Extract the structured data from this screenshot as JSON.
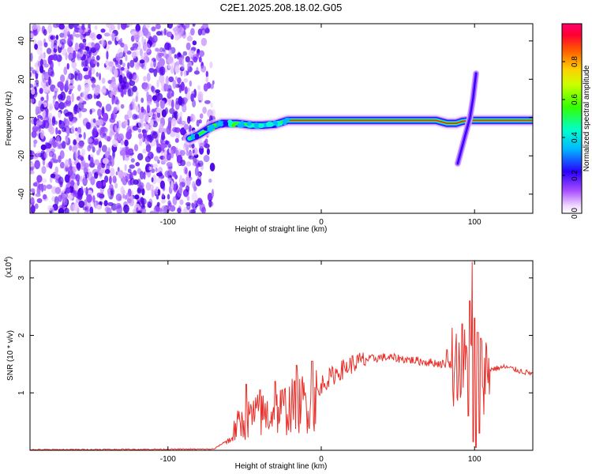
{
  "title": "C2E1.2025.208.18.02.G05",
  "top_chart": {
    "type": "heatmap",
    "xlabel": "Height of straight line (km)",
    "ylabel": "Frequency (Hz)",
    "xlim": [
      -190,
      138
    ],
    "ylim": [
      -50,
      49
    ],
    "x_ticks": [
      {
        "v": -100,
        "label": "-100"
      },
      {
        "v": 0,
        "label": "0"
      },
      {
        "v": 100,
        "label": "100"
      }
    ],
    "y_ticks": [
      {
        "v": 40,
        "label": "40"
      },
      {
        "v": 20,
        "label": "20"
      },
      {
        "v": 0,
        "label": "0"
      },
      {
        "v": -20,
        "label": "-20"
      },
      {
        "v": -40,
        "label": "-40"
      }
    ],
    "colorbar": {
      "label": "Normalized spectral amplitude",
      "range": [
        0,
        1
      ],
      "ticks": [
        {
          "v": 0.0,
          "label": "0.0"
        },
        {
          "v": 0.2,
          "label": "0.2"
        },
        {
          "v": 0.4,
          "label": "0.4"
        },
        {
          "v": 0.6,
          "label": "0.6"
        },
        {
          "v": 0.8,
          "label": "0.8"
        }
      ]
    },
    "ridge": {
      "points": [
        [
          -86,
          -11
        ],
        [
          -80,
          -9
        ],
        [
          -72,
          -5
        ],
        [
          -65,
          -3
        ],
        [
          -55,
          -3
        ],
        [
          -45,
          -4
        ],
        [
          -38,
          -4
        ],
        [
          -30,
          -3.5
        ],
        [
          -22,
          -1.5
        ],
        [
          -10,
          -1.5
        ],
        [
          0,
          -1.5
        ],
        [
          20,
          -1.5
        ],
        [
          50,
          -1.5
        ],
        [
          75,
          -1.5
        ],
        [
          82,
          -3
        ],
        [
          88,
          -3
        ],
        [
          92,
          -2
        ],
        [
          98,
          -1.5
        ],
        [
          110,
          -1.5
        ],
        [
          138,
          -1.5
        ]
      ],
      "branch": [
        [
          89,
          -24
        ],
        [
          93,
          -12
        ],
        [
          97,
          0
        ],
        [
          99,
          10
        ],
        [
          101,
          23
        ]
      ]
    }
  },
  "bottom_chart": {
    "type": "line",
    "xlabel": "Height of straight line (km)",
    "ylabel": "SNR (10 * v/v)",
    "scale_note": "(x10",
    "scale_exp": "4",
    "scale_close": ")",
    "xlim": [
      -190,
      138
    ],
    "ylim": [
      0,
      3.3
    ],
    "x_ticks": [
      {
        "v": -100,
        "label": "-100"
      },
      {
        "v": 0,
        "label": "0"
      },
      {
        "v": 100,
        "label": "100"
      }
    ],
    "y_ticks": [
      {
        "v": 3,
        "label": "3"
      },
      {
        "v": 2,
        "label": "2"
      },
      {
        "v": 1,
        "label": "1"
      }
    ],
    "series": [
      {
        "color": "#e8302a",
        "envelope": [
          [
            -190,
            0.01
          ],
          [
            -70,
            0.02
          ],
          [
            -60,
            0.2
          ],
          [
            -55,
            0.5
          ],
          [
            -45,
            0.7
          ],
          [
            -35,
            0.75
          ],
          [
            -25,
            0.85
          ],
          [
            -15,
            0.95
          ],
          [
            -5,
            1.05
          ],
          [
            0,
            1.15
          ],
          [
            10,
            1.35
          ],
          [
            20,
            1.5
          ],
          [
            30,
            1.58
          ],
          [
            40,
            1.62
          ],
          [
            50,
            1.6
          ],
          [
            65,
            1.55
          ],
          [
            80,
            1.5
          ],
          [
            90,
            1.5
          ],
          [
            98,
            1.4
          ],
          [
            102,
            1.3
          ],
          [
            108,
            1.4
          ],
          [
            120,
            1.45
          ],
          [
            130,
            1.38
          ],
          [
            138,
            1.33
          ]
        ],
        "peaks": [
          [
            -49,
            1.15
          ],
          [
            -40,
            1.05
          ],
          [
            -30,
            1.2
          ],
          [
            -16,
            1.48
          ],
          [
            -6,
            1.55
          ],
          [
            82,
            1.75
          ],
          [
            92,
            2.2
          ],
          [
            97,
            2.6
          ],
          [
            98.5,
            3.28
          ],
          [
            100,
            2.3
          ],
          [
            102,
            2.05
          ],
          [
            104,
            1.95
          ]
        ],
        "dips": [
          [
            99,
            0.15
          ],
          [
            101,
            0.05
          ],
          [
            103,
            0.3
          ],
          [
            96,
            0.6
          ]
        ]
      }
    ]
  }
}
